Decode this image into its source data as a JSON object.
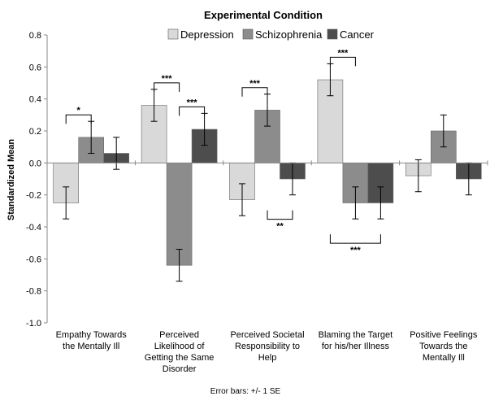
{
  "chart_data": {
    "type": "bar",
    "title": "Experimental Condition",
    "ylabel": "Standardized Mean",
    "xlabel": "",
    "ylim": [
      -1.0,
      0.8
    ],
    "yticks": [
      "0.8",
      "0.6",
      "0.4",
      "0.2",
      "0.0",
      "-0.2",
      "-0.4",
      "-0.6",
      "-0.8",
      "-1.0"
    ],
    "ytick_values": [
      0.8,
      0.6,
      0.4,
      0.2,
      0.0,
      -0.2,
      -0.4,
      -0.6,
      -0.8,
      -1.0
    ],
    "legend_position": "top",
    "grid": false,
    "categories": [
      [
        "Empathy Towards",
        "the Mentally Ill"
      ],
      [
        "Perceived",
        "Likelihood of",
        "Getting the Same",
        "Disorder"
      ],
      [
        "Perceived Societal",
        "Responsibility to",
        "Help"
      ],
      [
        "Blaming the Target",
        "for his/her Illness"
      ],
      [
        "Positive Feelings",
        "Towards the",
        "Mentally Ill"
      ]
    ],
    "series": [
      {
        "name": "Depression",
        "color": "#d9d9d9",
        "values": [
          -0.25,
          0.36,
          -0.23,
          0.52,
          -0.08
        ],
        "errors": [
          0.1,
          0.1,
          0.1,
          0.1,
          0.1
        ]
      },
      {
        "name": "Schizophrenia",
        "color": "#8c8c8c",
        "values": [
          0.16,
          -0.64,
          0.33,
          -0.25,
          0.2
        ],
        "errors": [
          0.1,
          0.1,
          0.1,
          0.1,
          0.1
        ]
      },
      {
        "name": "Cancer",
        "color": "#4d4d4d",
        "values": [
          0.06,
          0.21,
          -0.1,
          -0.25,
          -0.1
        ],
        "errors": [
          0.1,
          0.1,
          0.1,
          0.1,
          0.1
        ]
      }
    ],
    "significance": [
      {
        "group": 0,
        "from": 0,
        "to": 1,
        "label": "*",
        "side": "above"
      },
      {
        "group": 1,
        "from": 0,
        "to": 1,
        "label": "***",
        "side": "above"
      },
      {
        "group": 1,
        "from": 1,
        "to": 2,
        "label": "***",
        "side": "above"
      },
      {
        "group": 2,
        "from": 0,
        "to": 1,
        "label": "***",
        "side": "above"
      },
      {
        "group": 2,
        "from": 1,
        "to": 2,
        "label": "**",
        "side": "below"
      },
      {
        "group": 3,
        "from": 0,
        "to": 1,
        "label": "***",
        "side": "above"
      },
      {
        "group": 3,
        "from": 0,
        "to": 2,
        "label": "***",
        "side": "below"
      }
    ],
    "footnote": "Error bars: +/- 1 SE"
  }
}
